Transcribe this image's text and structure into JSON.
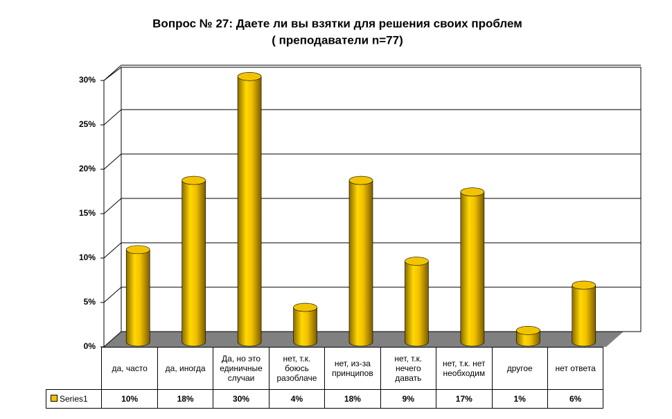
{
  "chart_data": {
    "type": "bar3d_cylinder",
    "title": "Вопрос № 27: Даете ли вы взятки для решения своих проблем",
    "subtitle": "( преподаватели n=77)",
    "categories": [
      "да, часто",
      "да, иногда",
      "Да, но это единичные случаи",
      "нет, т.к. боюсь разоблаче",
      "нет, из-за принципов",
      "нет, т.к. нечего давать",
      "нет, т.к. нет необходим",
      "другое",
      "нет ответа"
    ],
    "series": [
      {
        "name": "Series1",
        "color": "#f2c400",
        "values": [
          10.4,
          18.2,
          29.9,
          3.9,
          18.2,
          9.1,
          16.9,
          1.3,
          6.4
        ],
        "value_labels": [
          "10%",
          "18%",
          "30%",
          "4%",
          "18%",
          "9%",
          "17%",
          "1%",
          "6%"
        ]
      }
    ],
    "ylim": [
      0,
      30
    ],
    "yticks": [
      {
        "value": 0,
        "label": "0%"
      },
      {
        "value": 5,
        "label": "5%"
      },
      {
        "value": 10,
        "label": "10%"
      },
      {
        "value": 15,
        "label": "15%"
      },
      {
        "value": 20,
        "label": "20%"
      },
      {
        "value": 25,
        "label": "25%"
      },
      {
        "value": 30,
        "label": "30%"
      }
    ],
    "grid": true
  }
}
